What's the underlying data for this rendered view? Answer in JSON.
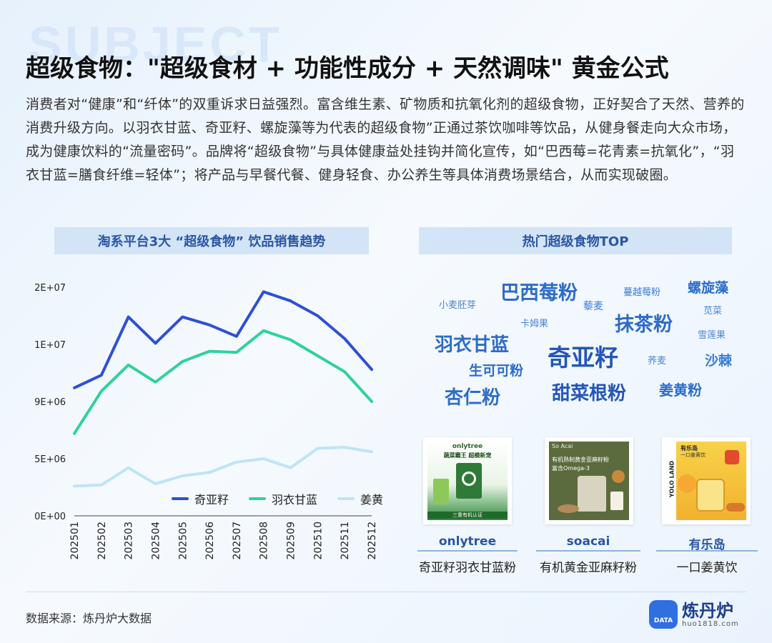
{
  "watermark": "SUBJECT",
  "title": "超级食物：\"超级食材 + 功能性成分 + 天然调味\" 黄金公式",
  "description": "消费者对“健康”和“纤体”的双重诉求日益强烈。富含维生素、矿物质和抗氧化剂的超级食物，正好契合了天然、营养的消费升级方向。以羽衣甘蓝、奇亚籽、螺旋藻等为代表的超级食物”正通过茶饮咖啡等饮品，从健身餐走向大众市场，成为健康饮料的“流量密码”。品牌将“超级食物”与具体健康益处挂钩并简化宣传，如“巴西莓=花青素=抗氧化”，“羽衣甘蓝=膳食纤维=轻体”；将产品与早餐代餐、健身轻食、办公养生等具体消费场景结合，从而实现破圈。",
  "left_panel_title": "淘系平台3大 “超级食物” 饮品销售趋势",
  "right_panel_title": "热门超级食物TOP",
  "chart_data": {
    "type": "line",
    "x": [
      "202501",
      "202502",
      "202503",
      "202504",
      "202505",
      "202506",
      "202507",
      "202508",
      "202509",
      "202510",
      "202511",
      "202512"
    ],
    "yticks": [
      "0E+00",
      "5E+06",
      "9E+06",
      "1E+07",
      "2E+07"
    ],
    "ylim": [
      0,
      20000000
    ],
    "grid": false,
    "legend": "bottom",
    "series": [
      {
        "name": "奇亚籽",
        "color": "#2f4fd4",
        "values": [
          11200000,
          12300000,
          17400000,
          15100000,
          17400000,
          16700000,
          15700000,
          19600000,
          18800000,
          17500000,
          15500000,
          12800000
        ]
      },
      {
        "name": "羽衣甘蓝",
        "color": "#2fd29a",
        "values": [
          7200000,
          10900000,
          13200000,
          11700000,
          13500000,
          14400000,
          14300000,
          16200000,
          15400000,
          14000000,
          12600000,
          10000000
        ]
      },
      {
        "name": "姜黄",
        "color": "#bfe4f4",
        "values": [
          2600000,
          2700000,
          4200000,
          2800000,
          3500000,
          3800000,
          4700000,
          5000000,
          4200000,
          5900000,
          6000000,
          5600000
        ]
      }
    ]
  },
  "word_cloud": [
    {
      "text": "巴西莓粉",
      "size": 27
    },
    {
      "text": "蔓越莓粉",
      "size": 13
    },
    {
      "text": "螺旋藻",
      "size": 19
    },
    {
      "text": "小麦胚芽",
      "size": 13
    },
    {
      "text": "藜麦",
      "size": 14
    },
    {
      "text": "苋菜",
      "size": 13
    },
    {
      "text": "卡姆果",
      "size": 13
    },
    {
      "text": "抹茶粉",
      "size": 27
    },
    {
      "text": "雪莲果",
      "size": 13
    },
    {
      "text": "羽衣甘蓝",
      "size": 26
    },
    {
      "text": "奇亚籽",
      "size": 33
    },
    {
      "text": "荞麦",
      "size": 13
    },
    {
      "text": "沙棘",
      "size": 19
    },
    {
      "text": "生可可粉",
      "size": 19
    },
    {
      "text": "杏仁粉",
      "size": 26
    },
    {
      "text": "甜菜根粉",
      "size": 26
    },
    {
      "text": "姜黄粉",
      "size": 20
    }
  ],
  "products": [
    {
      "brand": "onlytree",
      "name": "奇亚籽羽衣甘蓝粉",
      "image_text": [
        "onlytree",
        "蔬菜霸王 超模新宠",
        "三重有机认证"
      ]
    },
    {
      "brand": "soacai",
      "name": "有机黄金亚麻籽粉",
      "image_text": [
        "So Acai",
        "有机熟制黄金亚麻籽粉",
        "富含Omega-3"
      ]
    },
    {
      "brand": "有乐岛",
      "name": "一口姜黄饮",
      "image_text": [
        "YOLO LAND",
        "有乐岛",
        "一口姜黄饮"
      ]
    }
  ],
  "source": "数据来源：炼丹炉大数据",
  "logo": {
    "name": "炼丹炉",
    "badge": "DATA",
    "url": "huo1818.com"
  }
}
